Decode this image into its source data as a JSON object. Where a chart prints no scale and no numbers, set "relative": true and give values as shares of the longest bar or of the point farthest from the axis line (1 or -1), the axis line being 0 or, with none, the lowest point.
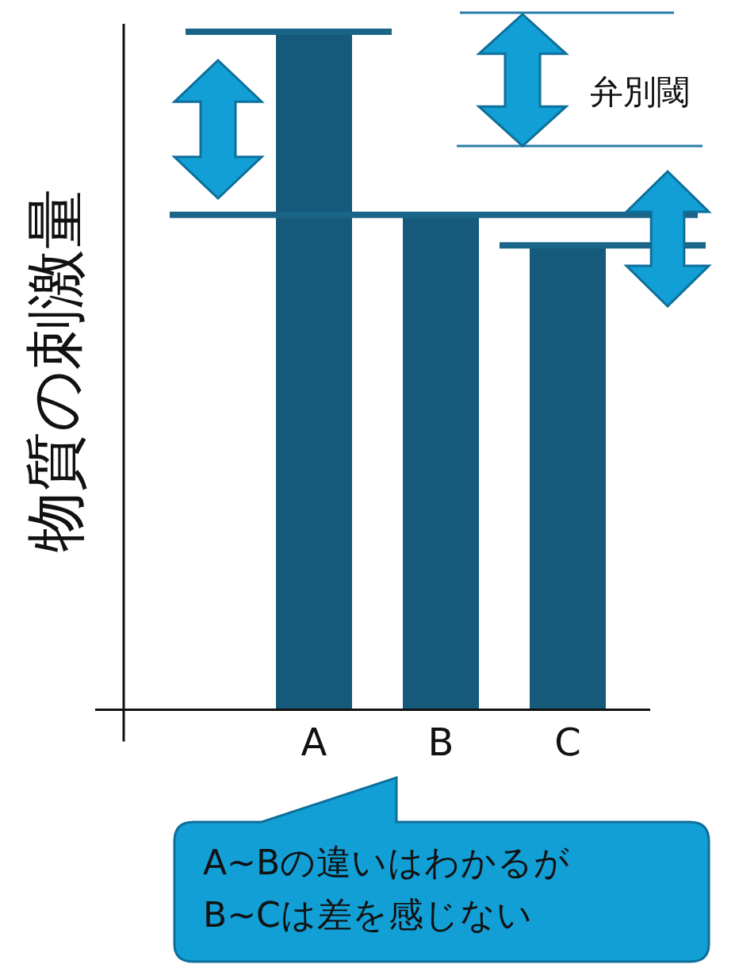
{
  "chart_data": {
    "type": "bar",
    "relative": true,
    "ylabel": "物質の刺激量",
    "categories": [
      "A",
      "B",
      "C"
    ],
    "values": [
      1,
      0.73,
      0.685
    ],
    "color": "#155a7a",
    "grid": false,
    "legend": false,
    "ref_lines": [
      {
        "axis": "y",
        "value": 1,
        "color": "#1a6488"
      },
      {
        "axis": "y",
        "value": 0.73,
        "color": "#1a6488"
      },
      {
        "axis": "y",
        "value": 0.685,
        "color": "#1a6488"
      }
    ],
    "annotations": [
      "弁別閾",
      "A~Bの違いはわかるが\nB~Cは差を感じない"
    ]
  }
}
